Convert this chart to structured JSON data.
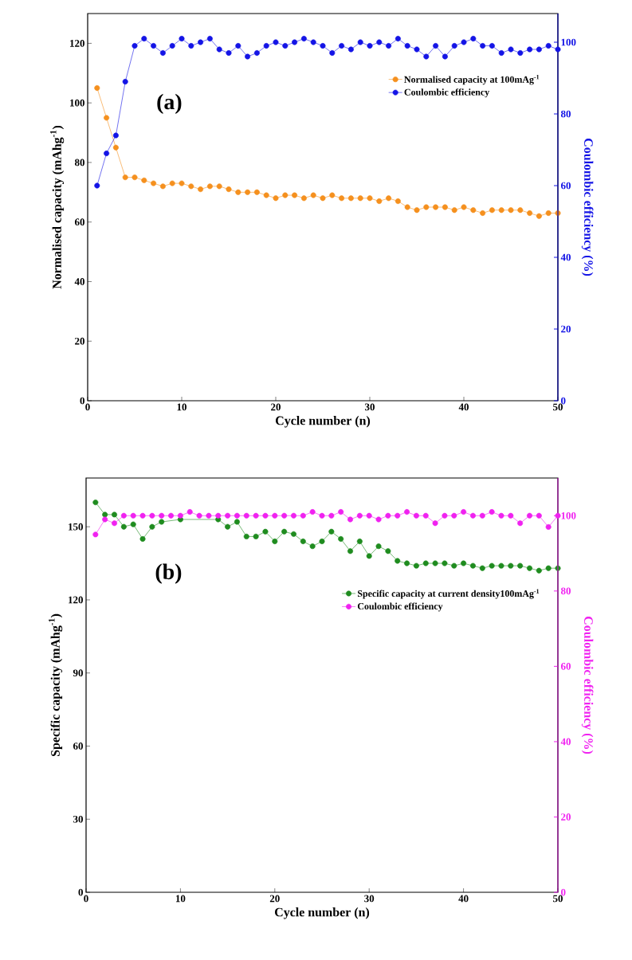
{
  "chart_data": [
    {
      "type": "line",
      "xlabel": "Cycle number (n)",
      "ylabel": "Normalised capacity (mAhg$^{-1}$)",
      "y2label": "Coulombic efficiency (%)",
      "x": [
        1,
        2,
        3,
        4,
        5,
        6,
        7,
        8,
        9,
        10,
        11,
        12,
        13,
        14,
        15,
        16,
        17,
        18,
        19,
        20,
        21,
        22,
        23,
        24,
        25,
        26,
        27,
        28,
        29,
        30,
        31,
        32,
        33,
        34,
        35,
        36,
        37,
        38,
        39,
        40,
        41,
        42,
        43,
        44,
        45,
        46,
        47,
        48,
        49,
        50
      ],
      "xlim": [
        0,
        50
      ],
      "xticks": [
        0,
        10,
        20,
        30,
        40,
        50
      ],
      "ylim": [
        0,
        130
      ],
      "yticks": [
        0,
        20,
        40,
        60,
        80,
        100,
        120
      ],
      "y2lim": [
        0,
        108
      ],
      "y2ticks": [
        0,
        20,
        40,
        60,
        80,
        100
      ],
      "marker": "circle",
      "legend": "top right",
      "annotations": [
        "(a)"
      ],
      "series": [
        {
          "name": "Normalised capacity at 100mAg$^{-1}$",
          "color": "#f5901e",
          "values": [
            105,
            95,
            85,
            75,
            75,
            74,
            73,
            72,
            73,
            73,
            72,
            71,
            72,
            72,
            71,
            70,
            70,
            70,
            69,
            68,
            69,
            69,
            68,
            69,
            68,
            69,
            68,
            68,
            68,
            68,
            67,
            68,
            67,
            65,
            64,
            65,
            65,
            65,
            64,
            65,
            64,
            63,
            64,
            64,
            64,
            64,
            63,
            62,
            63,
            63
          ]
        },
        {
          "name": "Coulombic efficiency",
          "color": "#1414e6",
          "axis": "y2",
          "values": [
            60,
            69,
            74,
            89,
            99,
            101,
            99,
            97,
            99,
            101,
            99,
            100,
            101,
            98,
            97,
            99,
            96,
            97,
            99,
            100,
            99,
            100,
            101,
            100,
            99,
            97,
            99,
            98,
            100,
            99,
            100,
            99,
            101,
            99,
            98,
            96,
            99,
            96,
            99,
            100,
            101,
            99,
            99,
            97,
            98,
            97,
            98,
            98,
            99,
            98
          ]
        }
      ]
    },
    {
      "type": "line",
      "xlabel": "Cycle number (n)",
      "ylabel": "Specific capacity (mAhg$^{-1}$)",
      "y2label": "Coulombic efficiency (%)",
      "x": [
        1,
        2,
        3,
        4,
        5,
        6,
        7,
        8,
        9,
        10,
        11,
        12,
        13,
        14,
        15,
        16,
        17,
        18,
        19,
        20,
        21,
        22,
        23,
        24,
        25,
        26,
        27,
        28,
        29,
        30,
        31,
        32,
        33,
        34,
        35,
        36,
        37,
        38,
        39,
        40,
        41,
        42,
        43,
        44,
        45,
        46,
        47,
        48,
        49,
        50
      ],
      "xlim": [
        0,
        50
      ],
      "xticks": [
        0,
        10,
        20,
        30,
        40,
        50
      ],
      "ylim": [
        0,
        170
      ],
      "yticks": [
        0,
        30,
        60,
        90,
        120,
        150
      ],
      "y2lim": [
        0,
        110
      ],
      "y2ticks": [
        0,
        20,
        40,
        60,
        80,
        100
      ],
      "marker": "circle",
      "legend": "right",
      "annotations": [
        "(b)"
      ],
      "series": [
        {
          "name": "Specific capacity at current density100mAg$^{-1}$",
          "color": "#1f8c1f",
          "values": [
            160,
            155,
            155,
            150,
            151,
            145,
            150,
            152,
            null,
            153,
            null,
            null,
            null,
            153,
            150,
            152,
            146,
            146,
            148,
            144,
            148,
            147,
            144,
            142,
            144,
            148,
            145,
            140,
            144,
            138,
            142,
            140,
            136,
            135,
            134,
            135,
            135,
            135,
            134,
            135,
            134,
            133,
            134,
            134,
            134,
            134,
            133,
            132,
            133,
            133
          ]
        },
        {
          "name": "Coulombic efficiency",
          "color": "#f022f0",
          "axis": "y2",
          "values": [
            95,
            99,
            98,
            100,
            100,
            100,
            100,
            100,
            100,
            100,
            101,
            100,
            100,
            100,
            100,
            100,
            100,
            100,
            100,
            100,
            100,
            100,
            100,
            101,
            100,
            100,
            101,
            99,
            100,
            100,
            99,
            100,
            100,
            101,
            100,
            100,
            98,
            100,
            100,
            101,
            100,
            100,
            101,
            100,
            100,
            98,
            100,
            100,
            97,
            100
          ]
        }
      ]
    }
  ]
}
